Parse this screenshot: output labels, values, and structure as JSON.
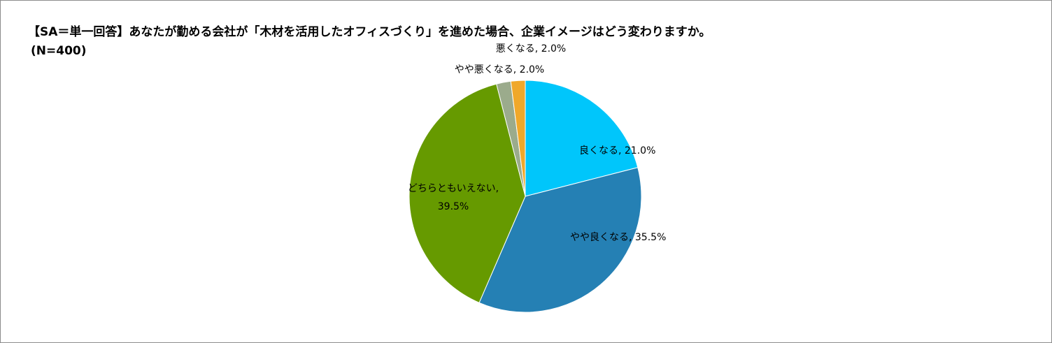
{
  "chart_data": {
    "type": "pie",
    "title": "【SA＝単一回答】あなたが勤める会社が「木材を活用したオフィスづくり」を進めた場合、企業イメージはどう変わりますか。",
    "subtitle": "(N=400)",
    "values": [
      21.0,
      35.5,
      39.5,
      2.0,
      2.0
    ],
    "value_labels": [
      "良くなる, 21.0%",
      "やや良くなる, 35.5%",
      "どちらともいえない, 39.5%",
      "やや悪くなる, 2.0%",
      "悪くなる, 2.0%"
    ],
    "colors": [
      "#00c6fb",
      "#2580b4",
      "#669a00",
      "#9bab8c",
      "#f0a82a"
    ]
  }
}
